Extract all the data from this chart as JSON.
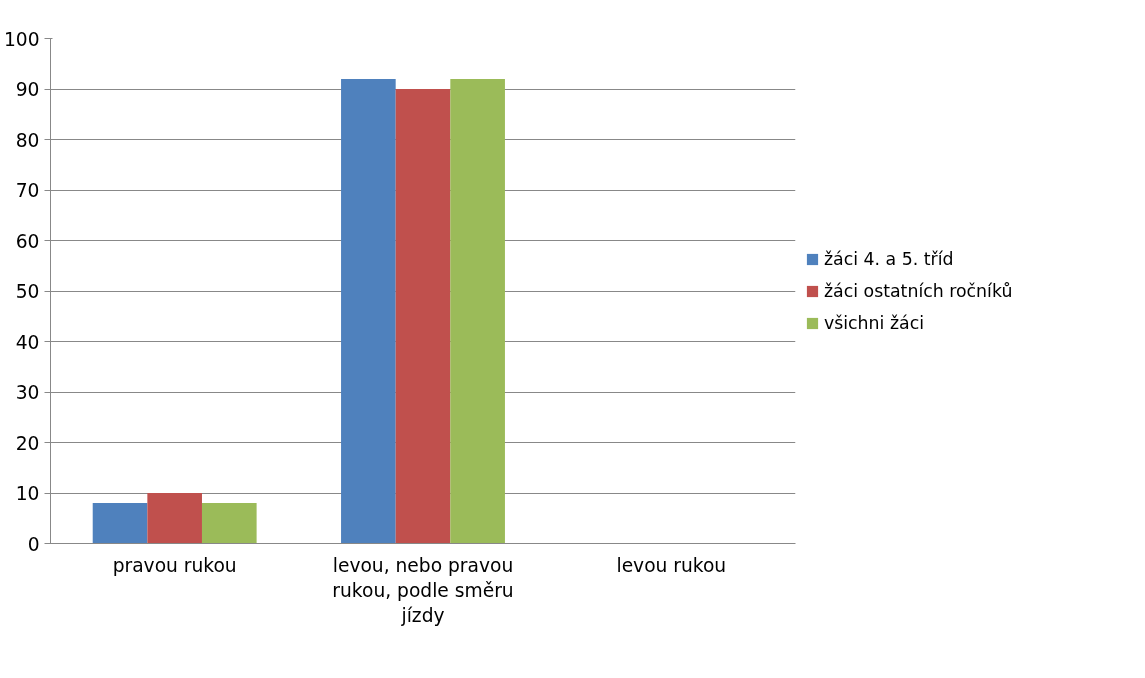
{
  "chart_data": {
    "type": "bar",
    "categories": [
      "pravou rukou",
      "levou, nebo pravou rukou, podle směru jízdy",
      "levou rukou"
    ],
    "series": [
      {
        "name": "žáci 4. a 5. tříd",
        "color": "#4f81bd",
        "values": [
          8,
          92,
          0
        ]
      },
      {
        "name": "žáci ostatních ročníků",
        "color": "#c0504d",
        "values": [
          10,
          90,
          0
        ]
      },
      {
        "name": "všichni žáci",
        "color": "#9bbb59",
        "values": [
          8,
          92,
          0
        ]
      }
    ],
    "ylim": [
      0,
      100
    ],
    "yticks": [
      0,
      10,
      20,
      30,
      40,
      50,
      60,
      70,
      80,
      90,
      100
    ],
    "grid": "y",
    "legend": "right"
  }
}
